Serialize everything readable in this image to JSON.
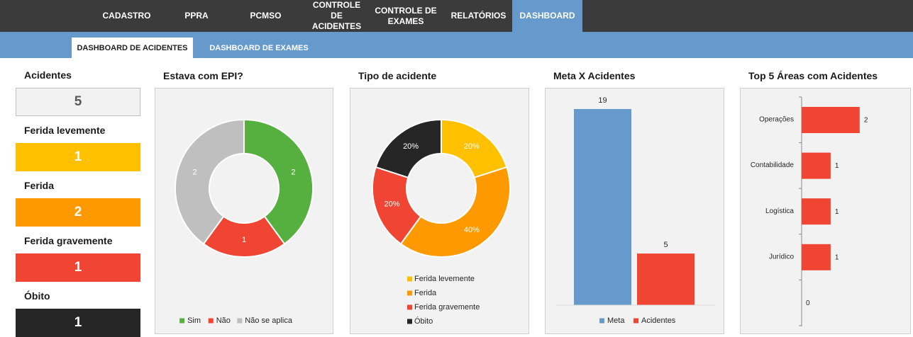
{
  "nav": {
    "items": [
      {
        "label": "CADASTRO"
      },
      {
        "label": "PPRA"
      },
      {
        "label": "PCMSO"
      },
      {
        "label": "CONTROLE DE ACIDENTES"
      },
      {
        "label": "CONTROLE DE EXAMES"
      },
      {
        "label": "RELATÓRIOS"
      },
      {
        "label": "DASHBOARD",
        "active": true
      }
    ]
  },
  "subtabs": [
    {
      "label": "DASHBOARD DE ACIDENTES",
      "active": true
    },
    {
      "label": "DASHBOARD DE EXAMES",
      "active": false
    }
  ],
  "kpis": [
    {
      "label": "Acidentes",
      "value": "5",
      "bg": "#f2f2f2",
      "fg": "#595959"
    },
    {
      "label": "Ferida levemente",
      "value": "1",
      "bg": "#ffc000",
      "fg": "#ffffff"
    },
    {
      "label": "Ferida",
      "value": "2",
      "bg": "#ff9900",
      "fg": "#ffffff"
    },
    {
      "label": "Ferida gravemente",
      "value": "1",
      "bg": "#f04532",
      "fg": "#ffffff"
    },
    {
      "label": "Óbito",
      "value": "1",
      "bg": "#262626",
      "fg": "#ffffff"
    }
  ],
  "chart_data": [
    {
      "type": "pie",
      "title": "Estava com EPI?",
      "categories": [
        "Sim",
        "Não",
        "Não se aplica"
      ],
      "values": [
        2,
        1,
        2
      ],
      "data_labels": [
        "2",
        "1",
        "2"
      ],
      "colors": [
        "#56b040",
        "#f04532",
        "#bfbfbf"
      ],
      "donut": true,
      "legend": "bottom"
    },
    {
      "type": "pie",
      "title": "Tipo de acidente",
      "categories": [
        "Ferida levemente",
        "Ferida",
        "Ferida gravemente",
        "Óbito"
      ],
      "values": [
        20,
        40,
        20,
        20
      ],
      "data_labels": [
        "20%",
        "40%",
        "20%",
        "20%"
      ],
      "colors": [
        "#ffc000",
        "#ff9900",
        "#f04532",
        "#262626"
      ],
      "donut": true,
      "legend": "bottom"
    },
    {
      "type": "bar",
      "title": "Meta X Acidentes",
      "categories": [
        "Meta",
        "Acidentes"
      ],
      "values": [
        19,
        5
      ],
      "colors": [
        "#6699cc",
        "#f04532"
      ],
      "ylim": [
        0,
        19
      ],
      "legend": "bottom"
    },
    {
      "type": "bar",
      "orientation": "horizontal",
      "title": "Top 5 Áreas com Acidentes",
      "categories": [
        "Operações",
        "Contabilidade",
        "Logística",
        "Jurídico",
        ""
      ],
      "values": [
        2,
        1,
        1,
        1,
        0
      ],
      "color": "#f04532",
      "xlim": [
        0,
        2.2
      ]
    }
  ]
}
